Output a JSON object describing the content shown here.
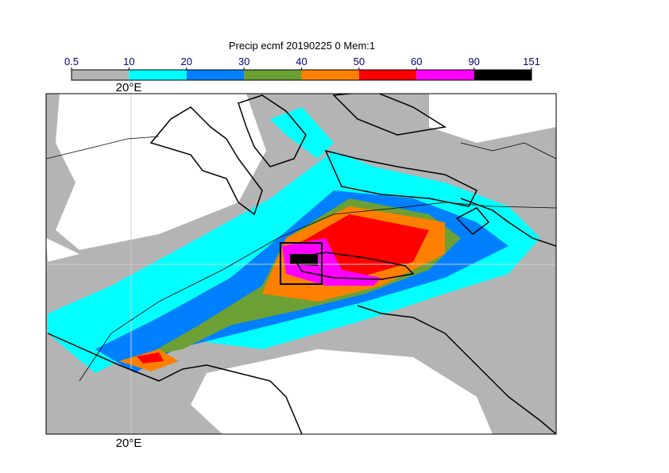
{
  "title": "Precip ecmf 20190225 0 Mem:1",
  "colorbar": {
    "levels": [
      0.5,
      10,
      20,
      30,
      40,
      50,
      60,
      90,
      151
    ],
    "colors": [
      "#b4b4b4",
      "#00ffff",
      "#0080ff",
      "#6ca034",
      "#ff8000",
      "#ff0000",
      "#ff00ff",
      "#000000"
    ]
  },
  "map": {
    "top_lon_label": "20°E",
    "bottom_lon_label": "20°E"
  }
}
